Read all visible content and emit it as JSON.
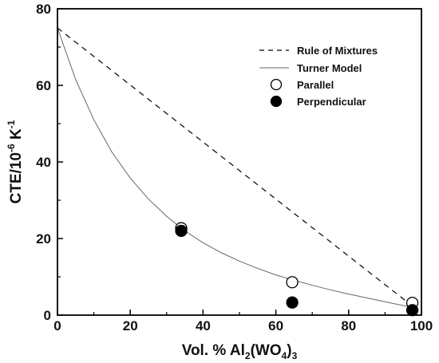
{
  "chart_data": {
    "type": "scatter",
    "xlabel": {
      "prefix": "Vol. % Al",
      "sub1": "2",
      "mid": "(WO",
      "sub2": "4",
      "suffix": ")",
      "sub3": "3"
    },
    "ylabel": {
      "prefix": "CTE/10",
      "sup1": "-6",
      "mid": " K",
      "sup2": "-1"
    },
    "xlim": [
      0,
      100
    ],
    "ylim": [
      0,
      80
    ],
    "xticks": [
      "0",
      "20",
      "40",
      "60",
      "80",
      "100"
    ],
    "yticks": [
      "0",
      "20",
      "40",
      "60",
      "80"
    ],
    "legend_position": "top-right",
    "series": [
      {
        "name": "Rule of Mixtures",
        "kind": "dashed-line",
        "color": "#000000",
        "x": [
          0,
          98
        ],
        "y": [
          75,
          2
        ]
      },
      {
        "name": "Turner Model",
        "kind": "solid-line",
        "color": "#666666",
        "x": [
          0,
          5,
          10,
          15,
          20,
          25,
          30,
          35,
          40,
          45,
          50,
          55,
          60,
          65,
          70,
          75,
          80,
          85,
          90,
          95,
          98
        ],
        "y": [
          75,
          61.5,
          51,
          42.5,
          35.8,
          30.3,
          25.8,
          22,
          18.9,
          16.3,
          14.1,
          12.2,
          10.5,
          9.1,
          7.8,
          6.6,
          5.5,
          4.5,
          3.5,
          2.5,
          2
        ]
      },
      {
        "name": "Parallel",
        "kind": "open-marker",
        "color": "#000000",
        "x": [
          34,
          64.5,
          97.5
        ],
        "y": [
          22.7,
          8.6,
          3.2
        ]
      },
      {
        "name": "Perpendicular",
        "kind": "filled-marker",
        "color": "#000000",
        "x": [
          34,
          64.5,
          97.5
        ],
        "y": [
          22,
          3.3,
          1.3
        ]
      }
    ]
  }
}
